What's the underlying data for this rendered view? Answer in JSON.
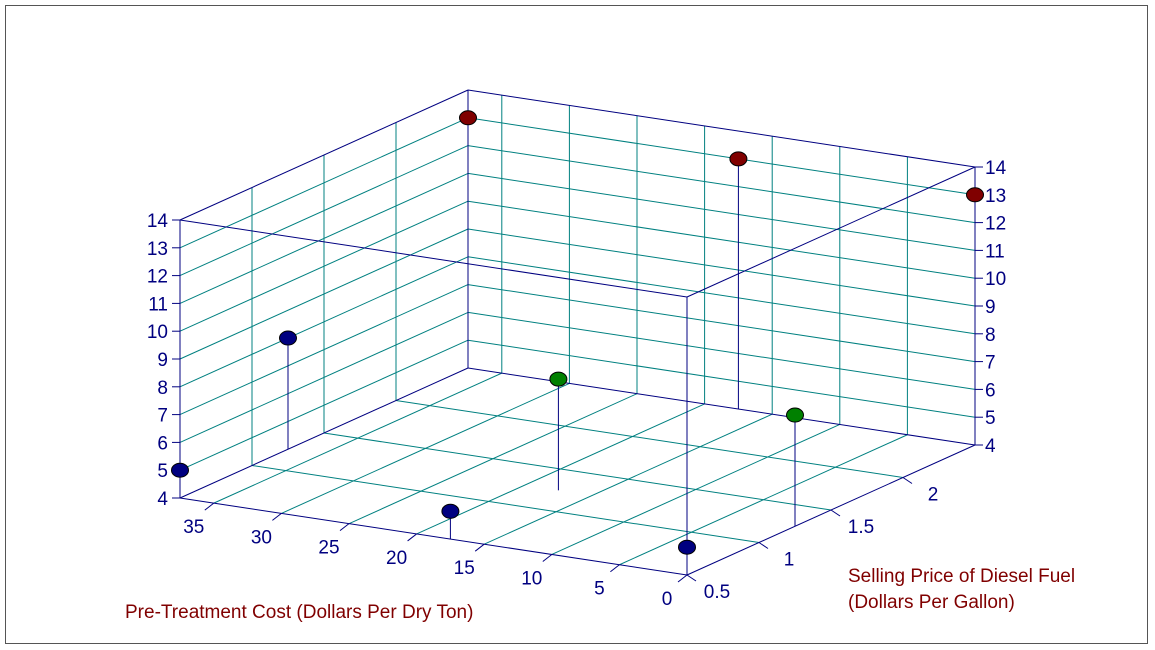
{
  "chart_data": {
    "type": "scatter",
    "title": "",
    "xlabel": "Pre-Treatment Cost (Dollars Per Dry Ton)",
    "ylabel": "Selling Price of Diesel Fuel",
    "ylabel_line2": "(Dollars Per Gallon)",
    "zlabel": "",
    "x_ticks": [
      "0",
      "5",
      "10",
      "15",
      "20",
      "25",
      "30",
      "35"
    ],
    "y_ticks": [
      "0.5",
      "1",
      "1.5",
      "2"
    ],
    "z_ticks": [
      "4",
      "5",
      "6",
      "7",
      "8",
      "9",
      "10",
      "11",
      "12",
      "13",
      "14"
    ],
    "xlim": [
      0,
      37.5
    ],
    "ylim": [
      0.5,
      2.5
    ],
    "zlim": [
      4,
      14
    ],
    "grid": true,
    "series": [
      {
        "color": "#000080",
        "points": [
          {
            "x": 37.5,
            "y": 0.5,
            "z": 5
          },
          {
            "x": 17.5,
            "y": 0.5,
            "z": 5
          },
          {
            "x": 0,
            "y": 0.5,
            "z": 5
          },
          {
            "x": 37.5,
            "y": 1.25,
            "z": 8
          }
        ]
      },
      {
        "color": "#008000",
        "points": [
          {
            "x": 17.5,
            "y": 1.25,
            "z": 8
          },
          {
            "x": 0,
            "y": 1.25,
            "z": 8
          }
        ]
      },
      {
        "color": "#800000",
        "points": [
          {
            "x": 37.5,
            "y": 2.5,
            "z": 13
          },
          {
            "x": 17.5,
            "y": 2.5,
            "z": 13
          },
          {
            "x": 0,
            "y": 2.5,
            "z": 13
          }
        ]
      }
    ],
    "colors": {
      "axis": "#000080",
      "grid": "#008080",
      "tick_text": "#000080",
      "title_text": "#800000"
    }
  }
}
